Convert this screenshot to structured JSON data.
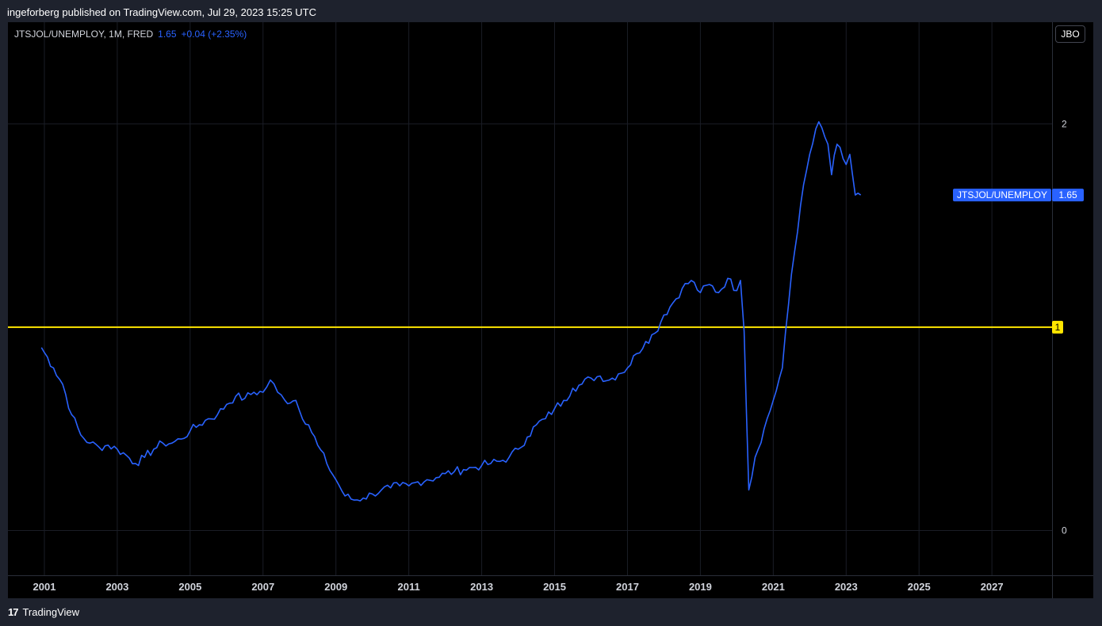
{
  "header": {
    "published": "ingeforberg published on TradingView.com, Jul 29, 2023 15:25 UTC"
  },
  "legend": {
    "symbol": "JTSJOL/UNEMPLOY, 1M, FRED",
    "value": "1.65",
    "change": "+0.04 (+2.35%)"
  },
  "toolbar": {
    "jbo_label": "JBO"
  },
  "footer": {
    "brand_icon": "tradingview-logo-icon",
    "brand_label": "TradingView",
    "brand_mark": "17"
  },
  "colors": {
    "series": "#2962ff",
    "reference_line": "#ffe600",
    "background": "#000000",
    "grid": "#1a1d26"
  },
  "chart_data": {
    "type": "line",
    "series": [
      {
        "name": "JTSJOL/UNEMPLOY",
        "last_value_label": "1.65",
        "points": [
          [
            2000.92,
            0.9
          ],
          [
            2001.25,
            0.8
          ],
          [
            2001.5,
            0.72
          ],
          [
            2001.75,
            0.57
          ],
          [
            2002.0,
            0.47
          ],
          [
            2002.25,
            0.43
          ],
          [
            2002.5,
            0.41
          ],
          [
            2002.75,
            0.42
          ],
          [
            2003.0,
            0.4
          ],
          [
            2003.25,
            0.37
          ],
          [
            2003.5,
            0.33
          ],
          [
            2003.75,
            0.36
          ],
          [
            2004.0,
            0.4
          ],
          [
            2004.25,
            0.43
          ],
          [
            2004.5,
            0.43
          ],
          [
            2004.75,
            0.45
          ],
          [
            2005.0,
            0.49
          ],
          [
            2005.25,
            0.52
          ],
          [
            2005.5,
            0.55
          ],
          [
            2005.75,
            0.57
          ],
          [
            2006.0,
            0.62
          ],
          [
            2006.25,
            0.66
          ],
          [
            2006.5,
            0.65
          ],
          [
            2006.75,
            0.68
          ],
          [
            2007.0,
            0.68
          ],
          [
            2007.2,
            0.74
          ],
          [
            2007.4,
            0.68
          ],
          [
            2007.6,
            0.64
          ],
          [
            2007.9,
            0.64
          ],
          [
            2008.0,
            0.59
          ],
          [
            2008.25,
            0.52
          ],
          [
            2008.5,
            0.42
          ],
          [
            2008.75,
            0.33
          ],
          [
            2009.0,
            0.25
          ],
          [
            2009.25,
            0.17
          ],
          [
            2009.5,
            0.15
          ],
          [
            2009.75,
            0.16
          ],
          [
            2010.0,
            0.18
          ],
          [
            2010.25,
            0.2
          ],
          [
            2010.5,
            0.21
          ],
          [
            2010.75,
            0.22
          ],
          [
            2011.0,
            0.22
          ],
          [
            2011.25,
            0.24
          ],
          [
            2011.5,
            0.25
          ],
          [
            2011.75,
            0.26
          ],
          [
            2012.0,
            0.28
          ],
          [
            2012.25,
            0.29
          ],
          [
            2012.5,
            0.3
          ],
          [
            2012.75,
            0.31
          ],
          [
            2013.0,
            0.32
          ],
          [
            2013.25,
            0.33
          ],
          [
            2013.5,
            0.34
          ],
          [
            2013.75,
            0.36
          ],
          [
            2014.0,
            0.4
          ],
          [
            2014.25,
            0.46
          ],
          [
            2014.5,
            0.52
          ],
          [
            2014.75,
            0.55
          ],
          [
            2015.0,
            0.6
          ],
          [
            2015.25,
            0.64
          ],
          [
            2015.5,
            0.7
          ],
          [
            2015.75,
            0.72
          ],
          [
            2016.0,
            0.75
          ],
          [
            2016.25,
            0.76
          ],
          [
            2016.5,
            0.74
          ],
          [
            2016.75,
            0.77
          ],
          [
            2017.0,
            0.8
          ],
          [
            2017.25,
            0.87
          ],
          [
            2017.5,
            0.93
          ],
          [
            2017.75,
            0.97
          ],
          [
            2018.0,
            1.06
          ],
          [
            2018.25,
            1.12
          ],
          [
            2018.5,
            1.19
          ],
          [
            2018.75,
            1.23
          ],
          [
            2019.0,
            1.17
          ],
          [
            2019.25,
            1.21
          ],
          [
            2019.5,
            1.17
          ],
          [
            2019.75,
            1.24
          ],
          [
            2020.0,
            1.18
          ],
          [
            2020.1,
            1.23
          ],
          [
            2020.2,
            0.98
          ],
          [
            2020.33,
            0.2
          ],
          [
            2020.5,
            0.36
          ],
          [
            2020.75,
            0.5
          ],
          [
            2021.0,
            0.64
          ],
          [
            2021.25,
            0.8
          ],
          [
            2021.5,
            1.26
          ],
          [
            2021.75,
            1.6
          ],
          [
            2022.0,
            1.85
          ],
          [
            2022.25,
            2.01
          ],
          [
            2022.5,
            1.9
          ],
          [
            2022.6,
            1.75
          ],
          [
            2022.75,
            1.9
          ],
          [
            2023.0,
            1.8
          ],
          [
            2023.1,
            1.85
          ],
          [
            2023.25,
            1.65
          ],
          [
            2023.4,
            1.65
          ]
        ]
      }
    ],
    "reference_line": {
      "y": 1,
      "label": "1"
    },
    "xticks": [
      2001,
      2003,
      2005,
      2007,
      2009,
      2011,
      2013,
      2015,
      2017,
      2019,
      2021,
      2023,
      2025,
      2027
    ],
    "yticks": [
      0,
      1,
      2
    ],
    "xlim": [
      2000.0,
      2028.65
    ],
    "ylim": [
      -0.22,
      2.5
    ],
    "grid": true,
    "title": "",
    "xlabel": "",
    "ylabel": ""
  }
}
